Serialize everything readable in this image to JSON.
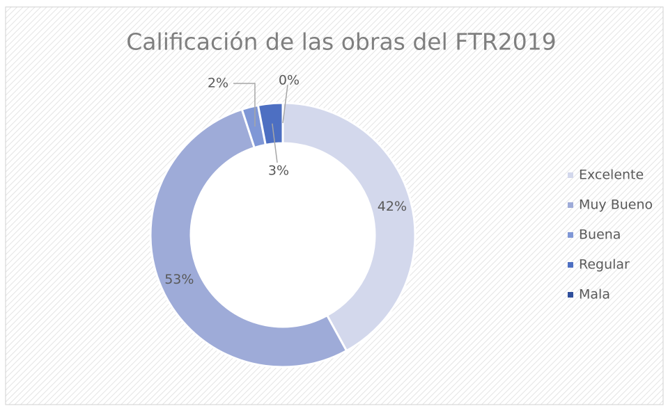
{
  "chart_data": {
    "type": "donut",
    "title": "Calificación de las obras del FTR2019",
    "categories": [
      "Excelente",
      "Muy Bueno",
      "Buena",
      "Regular",
      "Mala"
    ],
    "values": [
      42,
      53,
      2,
      3,
      0
    ],
    "value_labels": [
      "42%",
      "53%",
      "2%",
      "3%",
      "0%"
    ],
    "colors": [
      "#d3d8ec",
      "#9eabd8",
      "#7f97d6",
      "#4d6fc2",
      "#2f4f9c"
    ],
    "legend": "right"
  }
}
